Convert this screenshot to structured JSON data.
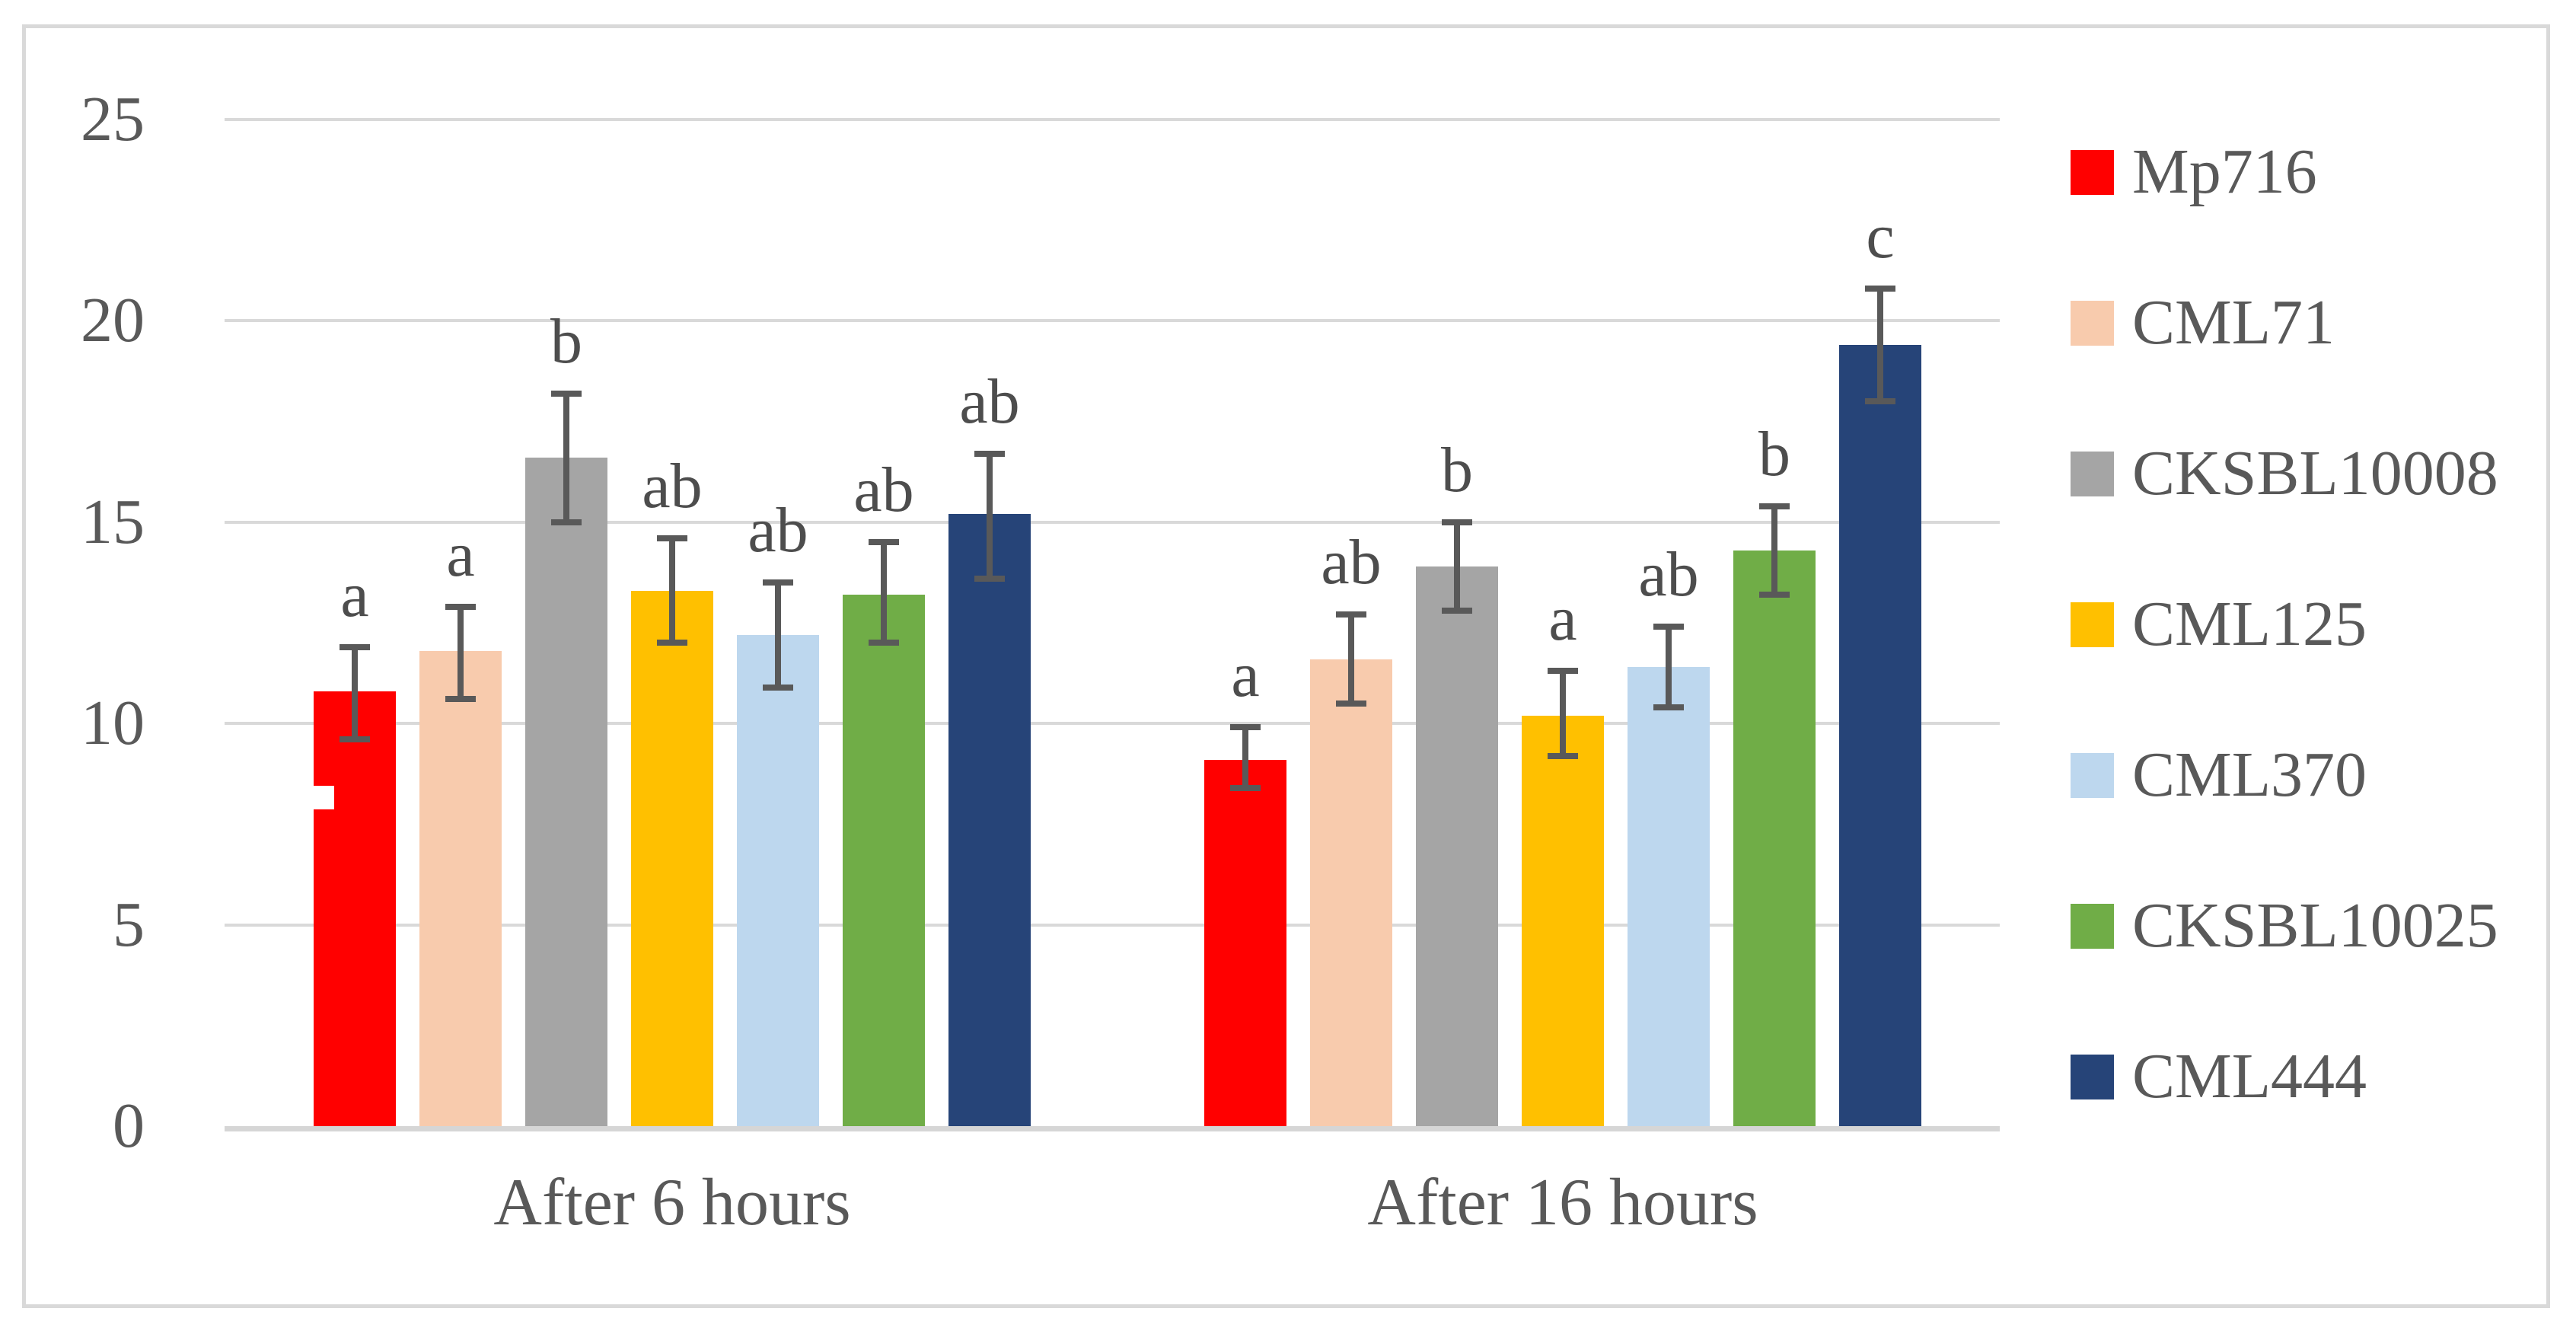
{
  "chart_data": {
    "type": "bar",
    "title": "",
    "categories": [
      "After 6 hours",
      "After 16 hours"
    ],
    "series": [
      {
        "name": "Mp716",
        "color": "#FF0000",
        "values": [
          10.8,
          9.1
        ],
        "error_ranges": [
          [
            9.6,
            11.9
          ],
          [
            8.4,
            9.9
          ]
        ],
        "letters": [
          "a",
          "a"
        ]
      },
      {
        "name": "CML71",
        "color": "#F8CBAD",
        "values": [
          11.8,
          11.6
        ],
        "error_ranges": [
          [
            10.6,
            12.9
          ],
          [
            10.5,
            12.7
          ]
        ],
        "letters": [
          "a",
          "ab"
        ]
      },
      {
        "name": "CKSBL10008",
        "color": "#A5A5A5",
        "values": [
          16.6,
          13.9
        ],
        "error_ranges": [
          [
            15.0,
            18.2
          ],
          [
            12.8,
            15.0
          ]
        ],
        "letters": [
          "b",
          "b"
        ]
      },
      {
        "name": "CML125",
        "color": "#FFC000",
        "values": [
          13.3,
          10.2
        ],
        "error_ranges": [
          [
            12.0,
            14.6
          ],
          [
            9.2,
            11.3
          ]
        ],
        "letters": [
          "ab",
          "a"
        ]
      },
      {
        "name": "CML370",
        "color": "#BDD7EE",
        "values": [
          12.2,
          11.4
        ],
        "error_ranges": [
          [
            10.9,
            13.5
          ],
          [
            10.4,
            12.4
          ]
        ],
        "letters": [
          "ab",
          "ab"
        ]
      },
      {
        "name": "CKSBL10025",
        "color": "#70AD47",
        "values": [
          13.2,
          14.3
        ],
        "error_ranges": [
          [
            12.0,
            14.5
          ],
          [
            13.2,
            15.4
          ]
        ],
        "letters": [
          "ab",
          "b"
        ]
      },
      {
        "name": "CML444",
        "color": "#264478",
        "values": [
          15.2,
          19.4
        ],
        "error_ranges": [
          [
            13.6,
            16.7
          ],
          [
            18.0,
            20.8
          ]
        ],
        "letters": [
          "ab",
          "c"
        ]
      }
    ],
    "y_axis": {
      "min": 0,
      "max": 25,
      "step": 5,
      "tick_labels": [
        "0",
        "5",
        "10",
        "15",
        "20",
        "25"
      ]
    },
    "grid": true,
    "legend_position": "right",
    "error_bar_color": "#595959",
    "gridline_color": "#D9D9D9",
    "text_color": "#595959",
    "artifacts": {
      "white_notch_on_first_red_bar": true
    }
  }
}
